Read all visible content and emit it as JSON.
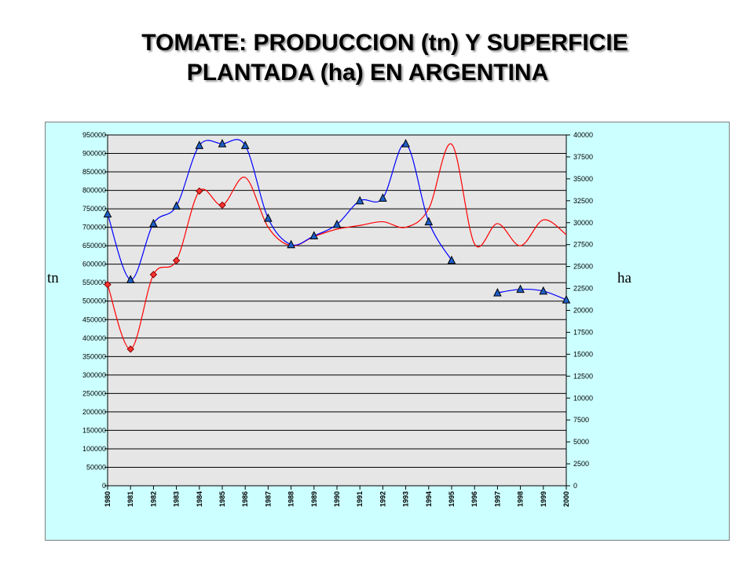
{
  "title": {
    "line1": "TOMATE: PRODUCCION (tn) Y SUPERFICIE",
    "line2": "PLANTADA (ha) EN ARGENTINA"
  },
  "left_axis_label": "tn",
  "right_axis_label": "ha",
  "colors": {
    "background": "#ccffff",
    "plot_area": "#e6e6e6",
    "produccion": "#ff0000",
    "superficie": "#0000ff",
    "marker_fill": "#1f5fc8"
  },
  "chart_data": {
    "type": "line",
    "title": "TOMATE: PRODUCCION (tn) Y SUPERFICIE PLANTADA (ha) EN ARGENTINA",
    "x": [
      "1980",
      "1981",
      "1982",
      "1983",
      "1984",
      "1985",
      "1986",
      "1987",
      "1988",
      "1989",
      "1990",
      "1991",
      "1992",
      "1993",
      "1994",
      "1995",
      "1996",
      "1997",
      "1998",
      "1999",
      "2000"
    ],
    "y_left": {
      "label": "tn",
      "min": 0,
      "max": 950000,
      "step": 50000,
      "ticks": [
        "0",
        "50000",
        "100000",
        "150000",
        "200000",
        "250000",
        "300000",
        "350000",
        "400000",
        "450000",
        "500000",
        "550000",
        "600000",
        "650000",
        "700000",
        "750000",
        "800000",
        "850000",
        "900000",
        "950000"
      ]
    },
    "y_right": {
      "label": "ha",
      "min": 0,
      "max": 40000,
      "step": 2500,
      "ticks": [
        "0",
        "2500",
        "5000",
        "7500",
        "10000",
        "12500",
        "15000",
        "17500",
        "20000",
        "22500",
        "25000",
        "27500",
        "30000",
        "32500",
        "35000",
        "37500",
        "40000"
      ]
    },
    "grid": true,
    "series": [
      {
        "axis": "left",
        "marker": "diamond",
        "values": [
          545000,
          370000,
          572000,
          610000,
          798000,
          760000,
          835000,
          700000,
          650000,
          675000,
          695000,
          705000,
          715000,
          700000,
          750000,
          925000,
          655000,
          710000,
          650000,
          720000,
          680000
        ],
        "markers_on": [
          0,
          1,
          2,
          3,
          4,
          5
        ]
      },
      {
        "axis": "right",
        "marker": "triangle",
        "values": [
          31000,
          23500,
          29900,
          31900,
          38800,
          39000,
          38800,
          30500,
          27500,
          28500,
          29800,
          32500,
          32800,
          39000,
          30100,
          25700,
          null,
          22000,
          22400,
          22200,
          21200
        ],
        "markers_on": [
          0,
          1,
          2,
          3,
          4,
          5,
          6,
          7,
          8,
          9,
          10,
          11,
          12,
          13,
          14,
          15,
          17,
          18,
          19,
          20
        ]
      }
    ]
  }
}
